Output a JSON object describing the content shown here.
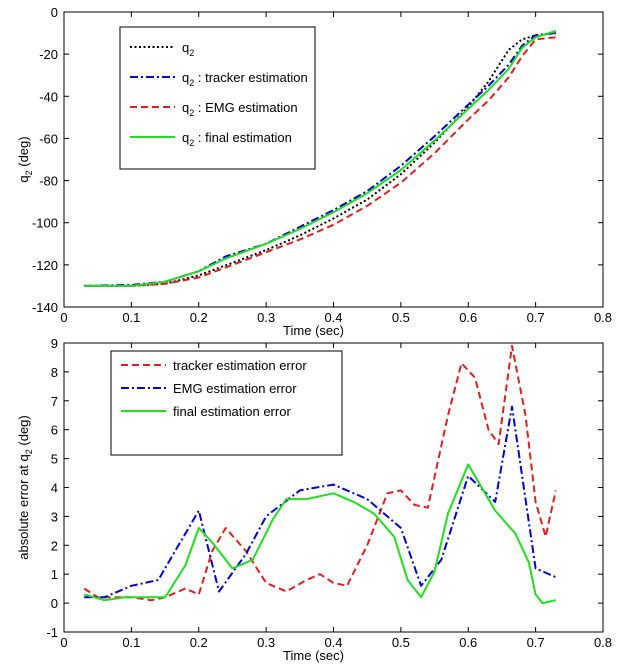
{
  "colors": {
    "black": "#000000",
    "blue": "#0000cc",
    "red": "#e02020",
    "green": "#22dd22"
  },
  "chart_data": [
    {
      "type": "line",
      "xlabel": "Time (sec)",
      "ylabel": {
        "base": "q",
        "sub": "2",
        "tail": " (deg)"
      },
      "xlim": [
        0,
        0.8
      ],
      "ylim": [
        -140,
        0
      ],
      "xticks": [
        "0",
        "0.1",
        "0.2",
        "0.3",
        "0.4",
        "0.5",
        "0.6",
        "0.7",
        "0.8"
      ],
      "yticks": [
        "0",
        "-20",
        "-40",
        "-60",
        "-80",
        "-100",
        "-120",
        "-140"
      ],
      "legend_position": "top-left",
      "series": [
        {
          "legend": {
            "base": "q",
            "sub": "2",
            "tail": ""
          },
          "color": "#000000",
          "dash": "dotted",
          "x": [
            0.03,
            0.1,
            0.15,
            0.2,
            0.25,
            0.3,
            0.35,
            0.4,
            0.45,
            0.5,
            0.55,
            0.6,
            0.63,
            0.66,
            0.68,
            0.7,
            0.73
          ],
          "y": [
            -130,
            -130,
            -129,
            -125,
            -119,
            -113,
            -106,
            -98,
            -89,
            -77,
            -62,
            -45,
            -33,
            -18,
            -13,
            -11,
            -10
          ]
        },
        {
          "legend": {
            "base": "q",
            "sub": "2",
            "tail": " : tracker estimation"
          },
          "color": "#0000cc",
          "dash": "dashdot",
          "x": [
            0.03,
            0.1,
            0.15,
            0.2,
            0.24,
            0.3,
            0.35,
            0.4,
            0.45,
            0.5,
            0.55,
            0.6,
            0.63,
            0.66,
            0.68,
            0.7,
            0.73
          ],
          "y": [
            -130,
            -129.5,
            -128,
            -123,
            -116,
            -110,
            -102,
            -94,
            -85,
            -73,
            -59,
            -44,
            -35,
            -25,
            -16,
            -11,
            -10
          ]
        },
        {
          "legend": {
            "base": "q",
            "sub": "2",
            "tail": " : EMG estimation"
          },
          "color": "#e02020",
          "dash": "dashed",
          "x": [
            0.03,
            0.1,
            0.15,
            0.2,
            0.25,
            0.3,
            0.35,
            0.4,
            0.45,
            0.5,
            0.55,
            0.6,
            0.63,
            0.66,
            0.68,
            0.7,
            0.73
          ],
          "y": [
            -130,
            -130,
            -129,
            -126,
            -120,
            -114,
            -108,
            -101,
            -92,
            -81,
            -67,
            -51,
            -42,
            -31,
            -21,
            -13,
            -12
          ]
        },
        {
          "legend": {
            "base": "q",
            "sub": "2",
            "tail": " : final estimation"
          },
          "color": "#22dd22",
          "dash": "solid",
          "x": [
            0.03,
            0.1,
            0.15,
            0.2,
            0.24,
            0.3,
            0.35,
            0.4,
            0.45,
            0.5,
            0.55,
            0.6,
            0.63,
            0.66,
            0.68,
            0.7,
            0.73
          ],
          "y": [
            -130,
            -130,
            -128,
            -123,
            -117,
            -110,
            -103,
            -95,
            -86,
            -75,
            -61,
            -46,
            -37,
            -27,
            -17,
            -12,
            -9
          ]
        }
      ]
    },
    {
      "type": "line",
      "xlabel": "Time (sec)",
      "ylabel": {
        "base": "absolute error at q",
        "sub": "2",
        "tail": " (deg)"
      },
      "xlim": [
        0,
        0.8
      ],
      "ylim": [
        -1,
        9
      ],
      "xticks": [
        "0",
        "0.1",
        "0.2",
        "0.3",
        "0.4",
        "0.5",
        "0.6",
        "0.7",
        "0.8"
      ],
      "yticks": [
        "9",
        "8",
        "7",
        "6",
        "5",
        "4",
        "3",
        "2",
        "1",
        "0",
        "-1"
      ],
      "legend_position": "top-left",
      "series": [
        {
          "legend": {
            "base": "tracker estimation error",
            "sub": "",
            "tail": ""
          },
          "color": "#e02020",
          "dash": "dashed",
          "x": [
            0.03,
            0.05,
            0.07,
            0.1,
            0.13,
            0.15,
            0.18,
            0.2,
            0.22,
            0.24,
            0.27,
            0.3,
            0.33,
            0.36,
            0.38,
            0.4,
            0.42,
            0.45,
            0.48,
            0.5,
            0.52,
            0.54,
            0.57,
            0.59,
            0.61,
            0.63,
            0.645,
            0.665,
            0.685,
            0.7,
            0.715,
            0.73
          ],
          "y": [
            0.5,
            0.2,
            0.2,
            0.2,
            0.1,
            0.2,
            0.5,
            0.3,
            1.8,
            2.6,
            1.8,
            0.7,
            0.4,
            0.8,
            1.0,
            0.7,
            0.6,
            2.0,
            3.8,
            3.9,
            3.4,
            3.3,
            6.5,
            8.3,
            7.8,
            6.0,
            5.5,
            8.9,
            6.5,
            3.5,
            2.3,
            3.9
          ]
        },
        {
          "legend": {
            "base": "EMG estimation error",
            "sub": "",
            "tail": ""
          },
          "color": "#0000cc",
          "dash": "dashdot",
          "x": [
            0.03,
            0.06,
            0.1,
            0.14,
            0.17,
            0.2,
            0.23,
            0.27,
            0.3,
            0.35,
            0.4,
            0.45,
            0.5,
            0.53,
            0.56,
            0.6,
            0.64,
            0.665,
            0.7,
            0.73
          ],
          "y": [
            0.2,
            0.2,
            0.6,
            0.8,
            2.0,
            3.2,
            0.4,
            1.7,
            3.0,
            3.9,
            4.1,
            3.6,
            2.6,
            0.6,
            1.5,
            4.4,
            3.5,
            6.8,
            1.2,
            0.9
          ]
        },
        {
          "legend": {
            "base": "final estimation error",
            "sub": "",
            "tail": ""
          },
          "color": "#22dd22",
          "dash": "solid",
          "x": [
            0.03,
            0.06,
            0.09,
            0.12,
            0.15,
            0.18,
            0.2,
            0.22,
            0.25,
            0.28,
            0.31,
            0.33,
            0.36,
            0.4,
            0.43,
            0.46,
            0.49,
            0.51,
            0.53,
            0.55,
            0.57,
            0.6,
            0.62,
            0.64,
            0.67,
            0.69,
            0.7,
            0.71,
            0.73
          ],
          "y": [
            0.3,
            0.1,
            0.2,
            0.2,
            0.2,
            1.3,
            2.6,
            2.1,
            1.2,
            1.5,
            2.9,
            3.6,
            3.6,
            3.8,
            3.5,
            3.1,
            2.3,
            0.8,
            0.2,
            1.1,
            3.1,
            4.8,
            4.0,
            3.2,
            2.4,
            1.4,
            0.3,
            0.0,
            0.1
          ]
        }
      ]
    }
  ]
}
